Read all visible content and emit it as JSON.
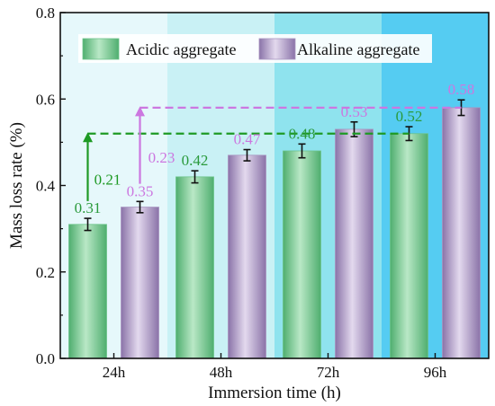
{
  "chart_data": {
    "type": "bar",
    "categories": [
      "24h",
      "48h",
      "72h",
      "96h"
    ],
    "xlabel": "Immersion time (h)",
    "ylabel": "Mass loss rate (%)",
    "ylim": [
      0,
      0.8
    ],
    "yticks": [
      "0.0",
      "0.2",
      "0.4",
      "0.6",
      "0.8"
    ],
    "grid": false,
    "legend_position": "top",
    "series": [
      {
        "name": "Acidic aggregate",
        "values": [
          0.31,
          0.42,
          0.48,
          0.52
        ],
        "labels": [
          "0.31",
          "0.42",
          "0.48",
          "0.52"
        ],
        "errors": [
          0.014,
          0.014,
          0.016,
          0.016
        ],
        "color": "#6cc48a",
        "label_color": "#2a9a3c"
      },
      {
        "name": "Alkaline aggregate",
        "values": [
          0.35,
          0.47,
          0.53,
          0.58
        ],
        "labels": [
          "0.35",
          "0.47",
          "0.53",
          "0.58"
        ],
        "errors": [
          0.013,
          0.013,
          0.017,
          0.018
        ],
        "color": "#a894c0",
        "label_color": "#cc77e0"
      }
    ],
    "annotations": [
      {
        "series": "Acidic aggregate",
        "from_value": 0.31,
        "to_value": 0.52,
        "text": "0.21",
        "color": "#1e9a24"
      },
      {
        "series": "Alkaline aggregate",
        "from_value": 0.35,
        "to_value": 0.58,
        "text": "0.23",
        "color": "#cc77e0"
      }
    ],
    "background_bands": [
      "#e6f8fb",
      "#c9f1f5",
      "#8fe3ee",
      "#55ccf2"
    ]
  }
}
